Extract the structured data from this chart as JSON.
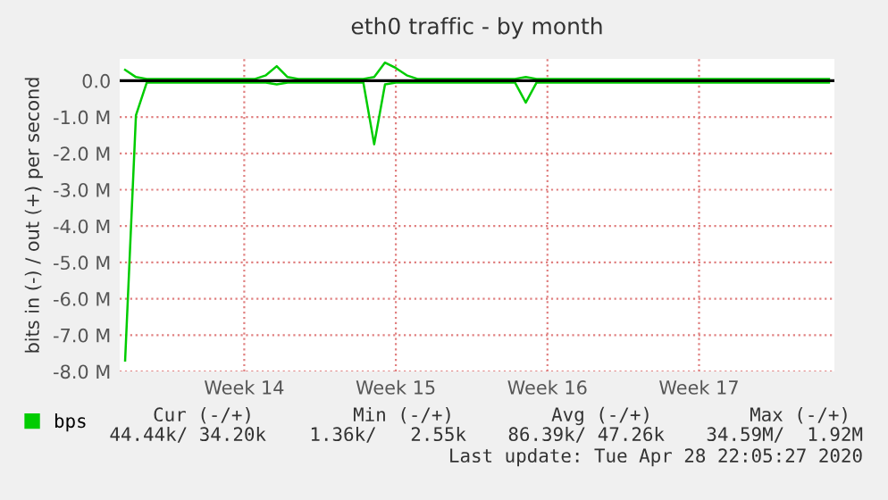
{
  "chart_data": {
    "type": "line",
    "title": "eth0 traffic - by month",
    "ylabel": "bits in (-) / out (+) per second",
    "categories": [
      null,
      null,
      null,
      null,
      null,
      null,
      null,
      null,
      null,
      null,
      null,
      "Week 14",
      null,
      null,
      null,
      null,
      null,
      null,
      null,
      null,
      null,
      null,
      null,
      null,
      null,
      "Week 15",
      null,
      null,
      null,
      null,
      null,
      null,
      null,
      null,
      null,
      null,
      null,
      null,
      null,
      "Week 16",
      null,
      null,
      null,
      null,
      null,
      null,
      null,
      null,
      null,
      null,
      null,
      null,
      null,
      "Week 17",
      null,
      null,
      null,
      null,
      null,
      null,
      null,
      null,
      null,
      null,
      null,
      null
    ],
    "series": [
      {
        "name": "bps",
        "color": "#00cc00",
        "values": [
          0.3,
          0.1,
          0.05,
          0.05,
          0.05,
          0.05,
          0.05,
          0.05,
          0.05,
          0.05,
          0.05,
          0.05,
          0.05,
          0.15,
          0.4,
          0.1,
          0.05,
          0.05,
          0.05,
          0.05,
          0.05,
          0.05,
          0.05,
          0.1,
          0.5,
          0.35,
          0.15,
          0.05,
          0.05,
          0.05,
          0.05,
          0.05,
          0.05,
          0.05,
          0.05,
          0.05,
          0.05,
          0.1,
          0.05,
          0.05,
          0.05,
          0.05,
          0.05,
          0.05,
          0.05,
          0.05,
          0.05,
          0.05,
          0.05,
          0.05,
          0.05,
          0.05,
          0.05,
          0.05,
          0.05,
          0.05,
          0.05,
          0.05,
          0.05,
          0.05,
          0.05,
          0.05,
          0.05,
          0.05,
          0.05,
          0.05
        ]
      },
      {
        "color": "#00cc00",
        "values": [
          -7.7,
          -0.95,
          -0.05,
          -0.05,
          -0.05,
          -0.05,
          -0.05,
          -0.05,
          -0.05,
          -0.05,
          -0.05,
          -0.05,
          -0.05,
          -0.05,
          -0.1,
          -0.05,
          -0.05,
          -0.05,
          -0.05,
          -0.05,
          -0.05,
          -0.05,
          -0.05,
          -1.75,
          -0.1,
          -0.05,
          -0.05,
          -0.05,
          -0.05,
          -0.05,
          -0.05,
          -0.05,
          -0.05,
          -0.05,
          -0.05,
          -0.05,
          -0.05,
          -0.6,
          -0.05,
          -0.05,
          -0.05,
          -0.05,
          -0.05,
          -0.05,
          -0.05,
          -0.05,
          -0.05,
          -0.05,
          -0.05,
          -0.05,
          -0.05,
          -0.05,
          -0.05,
          -0.05,
          -0.05,
          -0.05,
          -0.05,
          -0.05,
          -0.05,
          -0.05,
          -0.05,
          -0.05,
          -0.05,
          -0.05,
          -0.05,
          -0.05
        ]
      }
    ],
    "ylim": [
      -8,
      0.6
    ],
    "yticks": [
      {
        "value": 0,
        "label": "0.0"
      },
      {
        "value": -1,
        "label": "-1.0 M"
      },
      {
        "value": -2,
        "label": "-2.0 M"
      },
      {
        "value": -3,
        "label": "-3.0 M"
      },
      {
        "value": -4,
        "label": "-4.0 M"
      },
      {
        "value": -5,
        "label": "-5.0 M"
      },
      {
        "value": -6,
        "label": "-6.0 M"
      },
      {
        "value": -7,
        "label": "-7.0 M"
      },
      {
        "value": -8,
        "label": "-8.0 M"
      }
    ],
    "ref_lines": [
      {
        "axis": "y",
        "value": 0,
        "color": "#000000"
      }
    ],
    "grid": true,
    "legend": "bottom left",
    "marker": "none",
    "line_style": "solid",
    "annotations": [
      "Cur (-/+)",
      "Min (-/+)",
      "Avg (-/+)",
      "Max (-/+)",
      "44.44k/ 34.20k",
      "1.36k/   2.55k",
      "86.39k/ 47.26k",
      "34.59M/  1.92M",
      "Last update: Tue Apr 28 22:05:27 2020"
    ]
  }
}
